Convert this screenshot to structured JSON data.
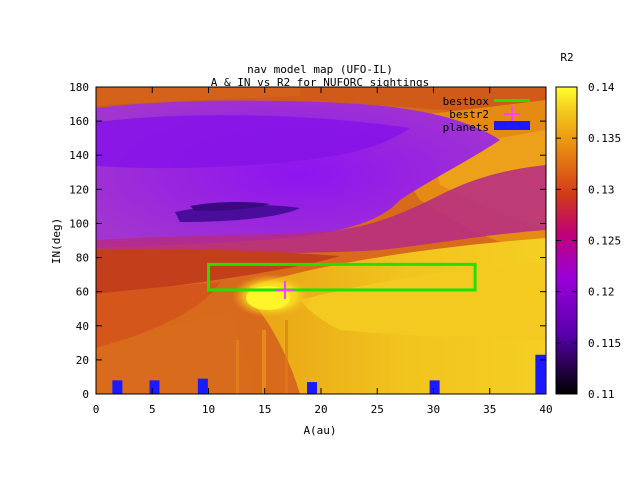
{
  "chart_data": {
    "type": "heatmap",
    "title": "nav model map (UFO-IL)",
    "subtitle": "A & IN vs R2 for NUFORC sightings",
    "xlabel": "A(au)",
    "ylabel": "IN(deg)",
    "xlim": [
      0,
      40
    ],
    "ylim": [
      0,
      180
    ],
    "x_ticks": [
      "0",
      "5",
      "10",
      "15",
      "20",
      "25",
      "30",
      "35",
      "40"
    ],
    "y_ticks": [
      "0",
      "20",
      "40",
      "60",
      "80",
      "100",
      "120",
      "140",
      "160",
      "180"
    ],
    "colorbar": {
      "label": "R2",
      "range": [
        0.11,
        0.14
      ],
      "ticks": [
        "0.11",
        "0.115",
        "0.12",
        "0.125",
        "0.13",
        "0.135",
        "0.14"
      ]
    },
    "legend": {
      "placement": "top-right",
      "entries": [
        {
          "label": "bestbox",
          "color": "#22e000"
        },
        {
          "label": "bestr2",
          "color": "#ff40ff"
        },
        {
          "label": "planets",
          "color": "#1a1aff"
        }
      ]
    },
    "bestbox": {
      "x": [
        10,
        33.7
      ],
      "y": [
        61,
        76
      ]
    },
    "bestr2": {
      "x": 16.8,
      "y": 61
    },
    "planets": [
      {
        "x": 1.9,
        "y": 8
      },
      {
        "x": 5.2,
        "y": 8
      },
      {
        "x": 9.5,
        "y": 9
      },
      {
        "x": 19.2,
        "y": 7
      },
      {
        "x": 30.1,
        "y": 8
      },
      {
        "x": 39.5,
        "y": 23
      }
    ],
    "regions": [
      {
        "name": "top-band",
        "x": [
          0,
          40
        ],
        "y": [
          163,
          180
        ],
        "value": 0.128
      },
      {
        "name": "upper-purple",
        "x": [
          0,
          30
        ],
        "y": [
          110,
          163
        ],
        "value": 0.1215
      },
      {
        "name": "upper-right-orange",
        "x": [
          25,
          40
        ],
        "y": [
          110,
          170
        ],
        "value": 0.132
      },
      {
        "name": "dark-streak",
        "x": [
          7,
          25
        ],
        "y": [
          98,
          108
        ],
        "value": 0.118
      },
      {
        "name": "mid-purple",
        "x": [
          0,
          25
        ],
        "y": [
          85,
          110
        ],
        "value": 0.1225
      },
      {
        "name": "red-left-band",
        "x": [
          0,
          12
        ],
        "y": [
          60,
          90
        ],
        "value": 0.127
      },
      {
        "name": "yellow-core",
        "x": [
          14,
          22
        ],
        "y": [
          48,
          66
        ],
        "value": 0.139
      },
      {
        "name": "right-gold",
        "x": [
          20,
          40
        ],
        "y": [
          30,
          90
        ],
        "value": 0.136
      },
      {
        "name": "lower-left",
        "x": [
          0,
          15
        ],
        "y": [
          0,
          50
        ],
        "value": 0.128
      }
    ]
  }
}
